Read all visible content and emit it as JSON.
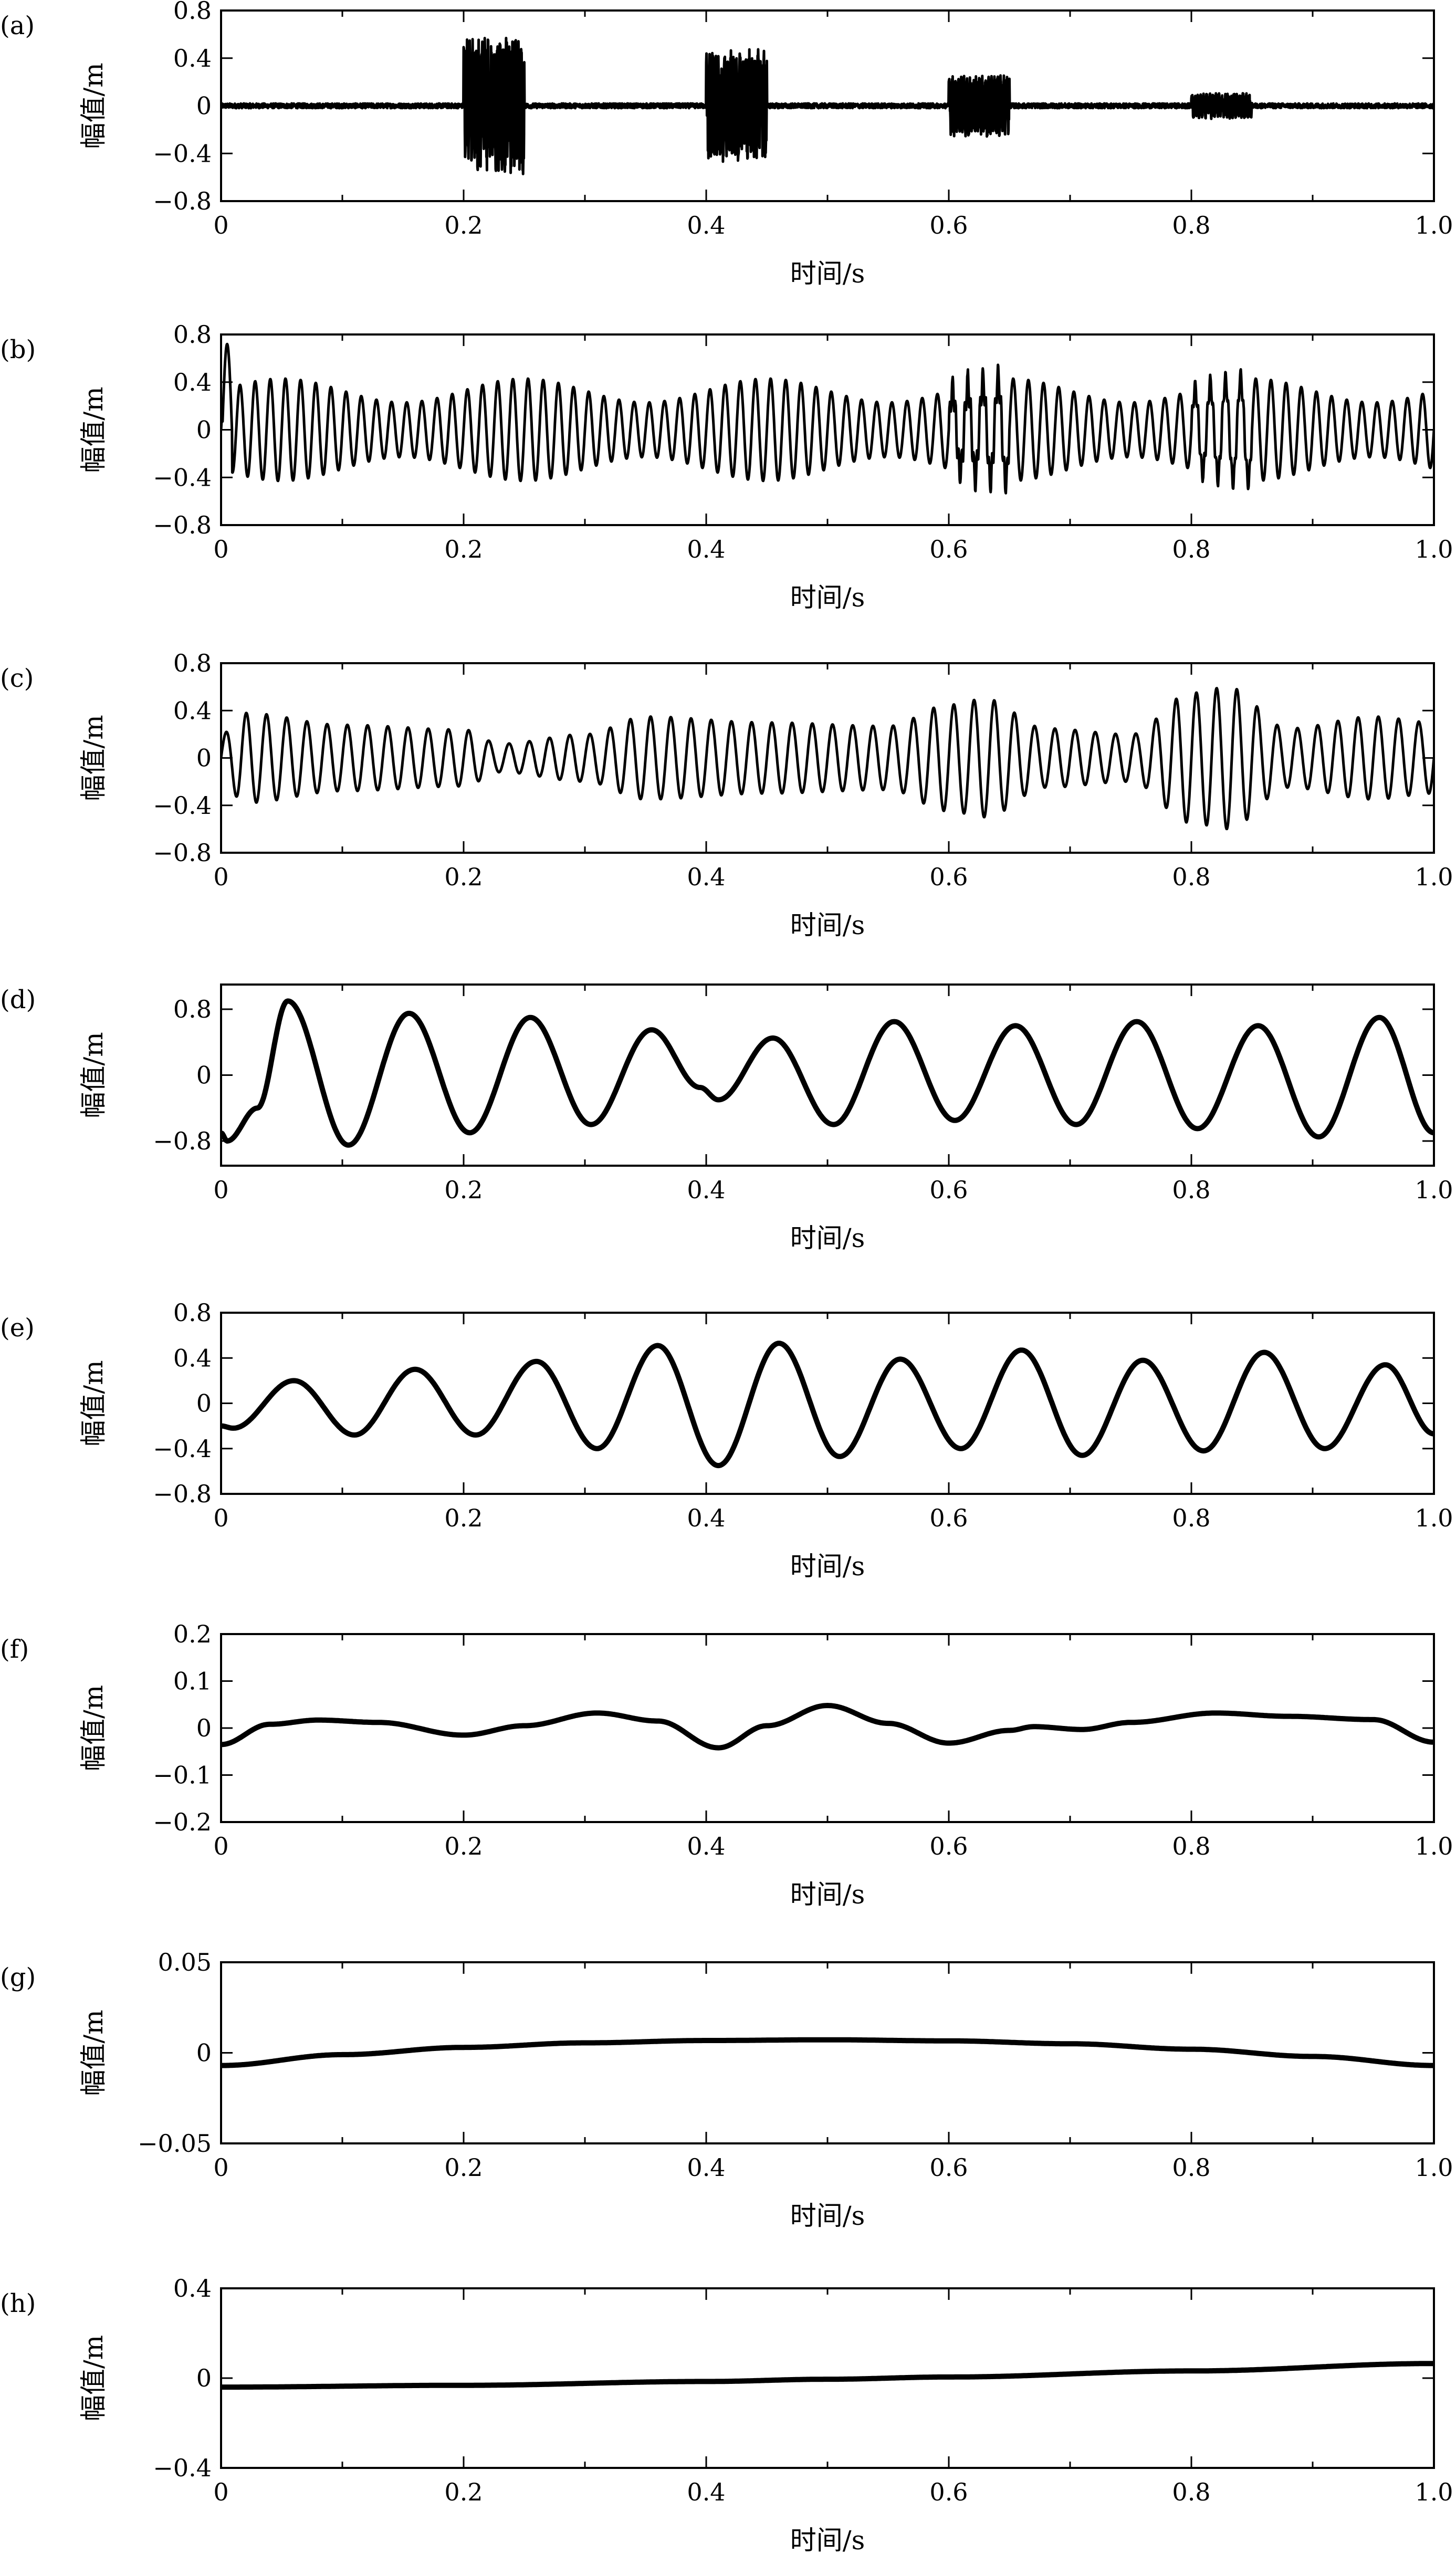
{
  "chart_data": [
    {
      "panel": "(a)",
      "type": "line",
      "xlabel": "时间/s",
      "ylabel": "幅值/m",
      "xlim": [
        0,
        1.0
      ],
      "ylim": [
        -0.8,
        0.8
      ],
      "xticks": [
        "0",
        "0.2",
        "0.4",
        "0.6",
        "0.8",
        "1.0"
      ],
      "yticks": [
        "0.8",
        "0.4",
        "0",
        "−0.4",
        "−0.8"
      ],
      "yticks_values": [
        0.8,
        0.4,
        0,
        -0.4,
        -0.8
      ],
      "grid": false,
      "series": [
        {
          "kind": "noise_bursts",
          "noise_amplitude": 0.02,
          "bursts": [
            {
              "start": 0.2,
              "end": 0.25,
              "amplitude": 0.58,
              "freq": 400
            },
            {
              "start": 0.4,
              "end": 0.45,
              "amplitude": 0.48,
              "freq": 400
            },
            {
              "start": 0.6,
              "end": 0.65,
              "amplitude": 0.26,
              "freq": 400
            },
            {
              "start": 0.8,
              "end": 0.85,
              "amplitude": 0.11,
              "freq": 400
            }
          ]
        }
      ]
    },
    {
      "panel": "(b)",
      "type": "line",
      "xlabel": "时间/s",
      "ylabel": "幅值/m",
      "xlim": [
        0,
        1.0
      ],
      "ylim": [
        -0.8,
        0.8
      ],
      "xticks": [
        "0",
        "0.2",
        "0.4",
        "0.6",
        "0.8",
        "1.0"
      ],
      "yticks": [
        "0.8",
        "0.4",
        "0",
        "−0.4",
        "−0.8"
      ],
      "yticks_values": [
        0.8,
        0.4,
        0,
        -0.4,
        -0.8
      ],
      "grid": false,
      "series": [
        {
          "kind": "sines",
          "components": [
            {
              "amp": 0.33,
              "freq": 80,
              "phase": 0
            }
          ],
          "modulation": {
            "amp": 0.1,
            "freq": 5
          },
          "bursts": [
            {
              "start": 0.6,
              "end": 0.65,
              "amplitude": 0.14,
              "freq": 400
            },
            {
              "start": 0.8,
              "end": 0.85,
              "amplitude": 0.09,
              "freq": 400
            }
          ],
          "spike": {
            "time": 0.005,
            "value": 0.72
          }
        }
      ]
    },
    {
      "panel": "(c)",
      "type": "line",
      "xlabel": "时间/s",
      "ylabel": "幅值/m",
      "xlim": [
        0,
        1.0
      ],
      "ylim": [
        -0.8,
        0.8
      ],
      "xticks": [
        "0",
        "0.2",
        "0.4",
        "0.6",
        "0.8",
        "1.0"
      ],
      "yticks": [
        "0.8",
        "0.4",
        "0",
        "−0.4",
        "−0.8"
      ],
      "yticks_values": [
        0.8,
        0.4,
        0,
        -0.4,
        -0.8
      ],
      "grid": false,
      "series": [
        {
          "kind": "envelope_sine",
          "freq": 60,
          "envelope_t": [
            0,
            0.02,
            0.1,
            0.2,
            0.23,
            0.3,
            0.35,
            0.45,
            0.55,
            0.6,
            0.63,
            0.68,
            0.75,
            0.8,
            0.83,
            0.88,
            0.95,
            1.0
          ],
          "envelope_a": [
            0.2,
            0.38,
            0.28,
            0.24,
            0.12,
            0.2,
            0.35,
            0.3,
            0.27,
            0.45,
            0.5,
            0.25,
            0.2,
            0.55,
            0.6,
            0.25,
            0.35,
            0.3
          ]
        }
      ]
    },
    {
      "panel": "(d)",
      "type": "line",
      "xlabel": "时间/s",
      "ylabel": "幅值/m",
      "xlim": [
        0,
        1.0
      ],
      "ylim": [
        -1.1,
        1.1
      ],
      "xticks": [
        "0",
        "0.2",
        "0.4",
        "0.6",
        "0.8",
        "1.0"
      ],
      "yticks": [
        "0.8",
        "0",
        "−0.8"
      ],
      "yticks_values": [
        0.8,
        0,
        -0.8
      ],
      "grid": false,
      "series": [
        {
          "kind": "points",
          "x": [
            0,
            0.005,
            0.03,
            0.055,
            0.105,
            0.155,
            0.205,
            0.255,
            0.305,
            0.355,
            0.395,
            0.41,
            0.455,
            0.505,
            0.555,
            0.605,
            0.655,
            0.705,
            0.755,
            0.805,
            0.855,
            0.905,
            0.955,
            1.0
          ],
          "y": [
            -0.7,
            -0.8,
            -0.4,
            0.9,
            -0.85,
            0.75,
            -0.7,
            0.7,
            -0.6,
            0.55,
            -0.15,
            -0.3,
            0.45,
            -0.6,
            0.65,
            -0.55,
            0.6,
            -0.6,
            0.65,
            -0.65,
            0.6,
            -0.75,
            0.7,
            -0.7
          ]
        }
      ]
    },
    {
      "panel": "(e)",
      "type": "line",
      "xlabel": "时间/s",
      "ylabel": "幅值/m",
      "xlim": [
        0,
        1.0
      ],
      "ylim": [
        -0.8,
        0.8
      ],
      "xticks": [
        "0",
        "0.2",
        "0.4",
        "0.6",
        "0.8",
        "1.0"
      ],
      "yticks": [
        "0.8",
        "0.4",
        "0",
        "−0.4",
        "−0.8"
      ],
      "yticks_values": [
        0.8,
        0.4,
        0,
        -0.4,
        -0.8
      ],
      "grid": false,
      "series": [
        {
          "kind": "points",
          "x": [
            0,
            0.01,
            0.06,
            0.11,
            0.16,
            0.21,
            0.26,
            0.31,
            0.36,
            0.41,
            0.46,
            0.51,
            0.56,
            0.61,
            0.66,
            0.71,
            0.76,
            0.81,
            0.86,
            0.91,
            0.96,
            1.0
          ],
          "y": [
            -0.2,
            -0.22,
            0.2,
            -0.28,
            0.3,
            -0.28,
            0.37,
            -0.4,
            0.51,
            -0.55,
            0.53,
            -0.47,
            0.39,
            -0.4,
            0.47,
            -0.46,
            0.38,
            -0.42,
            0.45,
            -0.4,
            0.34,
            -0.27
          ]
        }
      ]
    },
    {
      "panel": "(f)",
      "type": "line",
      "xlabel": "时间/s",
      "ylabel": "幅值/m",
      "xlim": [
        0,
        1.0
      ],
      "ylim": [
        -0.2,
        0.2
      ],
      "xticks": [
        "0",
        "0.2",
        "0.4",
        "0.6",
        "0.8",
        "1.0"
      ],
      "yticks": [
        "0.2",
        "0.1",
        "0",
        "−0.1",
        "−0.2"
      ],
      "yticks_values": [
        0.2,
        0.1,
        0,
        -0.1,
        -0.2
      ],
      "grid": false,
      "series": [
        {
          "kind": "points",
          "x": [
            0,
            0.04,
            0.08,
            0.13,
            0.2,
            0.25,
            0.31,
            0.36,
            0.41,
            0.45,
            0.5,
            0.55,
            0.6,
            0.65,
            0.67,
            0.71,
            0.75,
            0.82,
            0.88,
            0.95,
            1.0
          ],
          "y": [
            -0.035,
            0.008,
            0.017,
            0.012,
            -0.015,
            0.005,
            0.032,
            0.015,
            -0.042,
            0.005,
            0.048,
            0.01,
            -0.032,
            -0.005,
            0.003,
            -0.003,
            0.012,
            0.032,
            0.025,
            0.018,
            -0.03
          ]
        }
      ]
    },
    {
      "panel": "(g)",
      "type": "line",
      "xlabel": "时间/s",
      "ylabel": "幅值/m",
      "xlim": [
        0,
        1.0
      ],
      "ylim": [
        -0.05,
        0.05
      ],
      "xticks": [
        "0",
        "0.2",
        "0.4",
        "0.6",
        "0.8",
        "1.0"
      ],
      "yticks": [
        "0.05",
        "0",
        "−0.05"
      ],
      "yticks_values": [
        0.05,
        0,
        -0.05
      ],
      "grid": false,
      "series": [
        {
          "kind": "points",
          "x": [
            0,
            0.1,
            0.2,
            0.3,
            0.4,
            0.5,
            0.6,
            0.7,
            0.8,
            0.9,
            1.0
          ],
          "y": [
            -0.007,
            -0.001,
            0.003,
            0.0055,
            0.0068,
            0.0072,
            0.0066,
            0.005,
            0.002,
            -0.002,
            -0.007
          ]
        }
      ]
    },
    {
      "panel": "(h)",
      "type": "line",
      "xlabel": "时间/s",
      "ylabel": "幅值/m",
      "xlim": [
        0,
        1.0
      ],
      "ylim": [
        -0.4,
        0.4
      ],
      "xticks": [
        "0",
        "0.2",
        "0.4",
        "0.6",
        "0.8",
        "1.0"
      ],
      "yticks": [
        "0.4",
        "0",
        "−0.4"
      ],
      "yticks_values": [
        0.4,
        0,
        -0.4
      ],
      "grid": false,
      "series": [
        {
          "kind": "points",
          "x": [
            0,
            0.2,
            0.4,
            0.5,
            0.6,
            0.8,
            1.0
          ],
          "y": [
            -0.04,
            -0.032,
            -0.015,
            -0.005,
            0.005,
            0.032,
            0.065
          ]
        }
      ]
    }
  ]
}
